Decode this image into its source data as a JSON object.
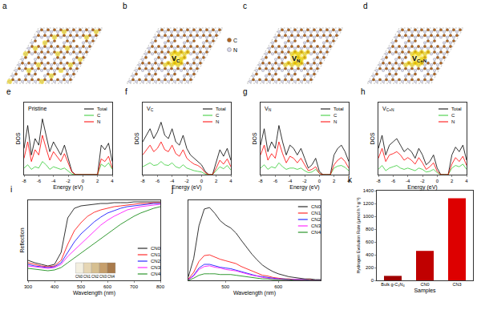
{
  "structures": {
    "atom_legend": [
      {
        "label": "C",
        "color": "#b5651d"
      },
      {
        "label": "N",
        "color": "#d8d8ee"
      }
    ],
    "panels": [
      {
        "panel": "a"
      },
      {
        "panel": "b",
        "label": "V",
        "sub": "C"
      },
      {
        "panel": "c",
        "label": "V",
        "sub": "N"
      },
      {
        "panel": "d",
        "label": "V",
        "sub": "C+N"
      }
    ]
  },
  "chart_data": [
    {
      "panel": "e",
      "type": "line",
      "title": "Pristine",
      "x": [
        -8,
        -7.5,
        -7,
        -6.5,
        -6,
        -5.5,
        -5,
        -4.5,
        -4,
        -3.5,
        -3,
        -2.5,
        -2,
        -1.5,
        -1,
        -0.5,
        0,
        0.5,
        1,
        1.5,
        2,
        2.5,
        3,
        3.5,
        4
      ],
      "series": [
        {
          "name": "Total",
          "color": "#000000",
          "values": [
            40,
            75,
            30,
            55,
            45,
            85,
            60,
            35,
            50,
            40,
            30,
            45,
            25,
            5,
            0,
            0,
            0,
            0,
            0,
            0,
            0,
            45,
            38,
            48,
            20
          ]
        },
        {
          "name": "C",
          "color": "#33cc33",
          "values": [
            10,
            15,
            8,
            12,
            10,
            20,
            15,
            8,
            12,
            10,
            8,
            10,
            5,
            1,
            0,
            0,
            0,
            0,
            0,
            0,
            0,
            16,
            12,
            18,
            8
          ]
        },
        {
          "name": "N",
          "color": "#ff0000",
          "values": [
            25,
            50,
            20,
            38,
            30,
            60,
            40,
            22,
            35,
            28,
            20,
            32,
            18,
            4,
            0,
            0,
            0,
            0,
            0,
            0,
            0,
            24,
            20,
            28,
            10
          ]
        }
      ],
      "xlim": [
        -8,
        4
      ],
      "xticks": [
        -8,
        -6,
        -4,
        -2,
        0,
        2,
        4
      ],
      "ylim": [
        0,
        110
      ],
      "x_label": "Energy (eV)",
      "y_label": "DOS",
      "tick_labels": "x",
      "legend": "upper right"
    },
    {
      "panel": "f",
      "type": "line",
      "title": "V",
      "title_sub": "C",
      "x": [
        -8,
        -7.5,
        -7,
        -6.5,
        -6,
        -5.5,
        -5,
        -4.5,
        -4,
        -3.5,
        -3,
        -2.5,
        -2,
        -1.5,
        -1,
        -0.5,
        0,
        0.5,
        1,
        1.5,
        2,
        2.5,
        3,
        3.5,
        4
      ],
      "series": [
        {
          "name": "Total",
          "color": "#000000",
          "values": [
            50,
            60,
            70,
            55,
            65,
            80,
            60,
            55,
            70,
            50,
            45,
            60,
            40,
            30,
            25,
            20,
            15,
            5,
            0,
            0,
            20,
            38,
            28,
            40,
            22
          ]
        },
        {
          "name": "C",
          "color": "#33cc33",
          "values": [
            12,
            15,
            18,
            14,
            15,
            20,
            15,
            14,
            18,
            12,
            10,
            15,
            10,
            8,
            6,
            5,
            4,
            1,
            0,
            0,
            6,
            12,
            9,
            14,
            7
          ]
        },
        {
          "name": "N",
          "color": "#ff0000",
          "values": [
            30,
            38,
            45,
            35,
            40,
            50,
            38,
            35,
            45,
            32,
            28,
            38,
            25,
            20,
            16,
            14,
            10,
            3,
            0,
            0,
            10,
            22,
            16,
            24,
            12
          ]
        }
      ],
      "xlim": [
        -8,
        4
      ],
      "xticks": [
        -8,
        -6,
        -4,
        -2,
        0,
        2,
        4
      ],
      "ylim": [
        0,
        110
      ],
      "x_label": "Energy (eV)",
      "y_label": "DOS",
      "tick_labels": "x",
      "legend": "upper right"
    },
    {
      "panel": "g",
      "type": "line",
      "title": "V",
      "title_sub": "N",
      "x": [
        -8,
        -7.5,
        -7,
        -6.5,
        -6,
        -5.5,
        -5,
        -4.5,
        -4,
        -3.5,
        -3,
        -2.5,
        -2,
        -1.5,
        -1,
        -0.5,
        0,
        0.5,
        1,
        1.5,
        2,
        2.5,
        3,
        3.5,
        4
      ],
      "series": [
        {
          "name": "Total",
          "color": "#000000",
          "values": [
            45,
            70,
            35,
            50,
            40,
            75,
            50,
            30,
            45,
            40,
            30,
            40,
            25,
            10,
            15,
            25,
            5,
            0,
            0,
            0,
            30,
            40,
            45,
            35,
            20
          ]
        },
        {
          "name": "C",
          "color": "#33cc33",
          "values": [
            10,
            15,
            8,
            12,
            10,
            18,
            12,
            8,
            10,
            10,
            8,
            10,
            6,
            3,
            4,
            8,
            2,
            0,
            0,
            0,
            10,
            13,
            14,
            11,
            6
          ]
        },
        {
          "name": "N",
          "color": "#ff0000",
          "values": [
            30,
            45,
            22,
            32,
            25,
            50,
            32,
            18,
            28,
            25,
            18,
            25,
            15,
            6,
            8,
            12,
            2,
            0,
            0,
            0,
            15,
            22,
            26,
            20,
            10
          ]
        }
      ],
      "xlim": [
        -8,
        4
      ],
      "xticks": [
        -8,
        -6,
        -4,
        -2,
        0,
        2,
        4
      ],
      "ylim": [
        0,
        110
      ],
      "x_label": "Energy (eV)",
      "y_label": "DOS",
      "tick_labels": "x",
      "legend": "upper right"
    },
    {
      "panel": "h",
      "type": "line",
      "title": "V",
      "title_sub": "C+N",
      "x": [
        -8,
        -7.5,
        -7,
        -6.5,
        -6,
        -5.5,
        -5,
        -4.5,
        -4,
        -3.5,
        -3,
        -2.5,
        -2,
        -1.5,
        -1,
        -0.5,
        0,
        0.5,
        1,
        1.5,
        2,
        2.5,
        3,
        3.5,
        4
      ],
      "series": [
        {
          "name": "Total",
          "color": "#000000",
          "values": [
            40,
            60,
            30,
            45,
            50,
            55,
            45,
            35,
            40,
            35,
            25,
            40,
            30,
            15,
            20,
            30,
            10,
            0,
            0,
            0,
            30,
            42,
            35,
            45,
            22
          ]
        },
        {
          "name": "C",
          "color": "#33cc33",
          "values": [
            8,
            14,
            6,
            10,
            12,
            14,
            10,
            8,
            10,
            8,
            6,
            10,
            8,
            4,
            5,
            8,
            3,
            0,
            0,
            0,
            10,
            14,
            12,
            16,
            8
          ]
        },
        {
          "name": "N",
          "color": "#ff0000",
          "values": [
            25,
            40,
            20,
            30,
            32,
            35,
            30,
            22,
            26,
            22,
            16,
            26,
            18,
            8,
            12,
            18,
            5,
            0,
            0,
            0,
            16,
            26,
            20,
            28,
            14
          ]
        }
      ],
      "xlim": [
        -8,
        4
      ],
      "xticks": [
        -8,
        -6,
        -4,
        -2,
        0,
        2,
        4
      ],
      "ylim": [
        0,
        110
      ],
      "x_label": "Energy (eV)",
      "y_label": "DOS",
      "tick_labels": "x",
      "legend": "upper right"
    },
    {
      "panel": "i",
      "type": "line",
      "x": [
        300,
        325,
        350,
        375,
        400,
        425,
        450,
        475,
        500,
        525,
        550,
        575,
        600,
        625,
        650,
        675,
        700,
        725,
        750,
        775,
        800
      ],
      "series": [
        {
          "name": "CN0",
          "color": "#000000",
          "values": [
            25,
            22,
            20,
            18,
            20,
            35,
            78,
            90,
            93,
            94,
            95,
            96,
            96,
            97,
            97,
            97,
            98,
            98,
            98,
            98,
            98
          ]
        },
        {
          "name": "CN1",
          "color": "#ff0000",
          "values": [
            22,
            20,
            18,
            17,
            18,
            25,
            45,
            62,
            72,
            80,
            85,
            88,
            90,
            92,
            93,
            94,
            95,
            96,
            96,
            97,
            97
          ]
        },
        {
          "name": "CN2",
          "color": "#0000ff",
          "values": [
            20,
            18,
            17,
            16,
            17,
            22,
            35,
            48,
            58,
            66,
            73,
            79,
            84,
            87,
            90,
            92,
            93,
            94,
            95,
            96,
            96
          ]
        },
        {
          "name": "CN3",
          "color": "#ff00ff",
          "values": [
            18,
            17,
            16,
            15,
            16,
            20,
            30,
            38,
            46,
            54,
            62,
            69,
            75,
            80,
            84,
            88,
            90,
            92,
            93,
            94,
            95
          ]
        },
        {
          "name": "CN4",
          "color": "#008000",
          "values": [
            15,
            14,
            13,
            12,
            13,
            16,
            22,
            28,
            34,
            40,
            46,
            52,
            58,
            64,
            70,
            75,
            80,
            84,
            87,
            90,
            92
          ]
        }
      ],
      "xlim": [
        300,
        800
      ],
      "xticks": [
        300,
        400,
        500,
        600,
        700,
        800
      ],
      "ylim": [
        0,
        100
      ],
      "x_label": "Wavelength (nm)",
      "y_label": "Reflection",
      "tick_labels": "x",
      "legend": "lower right",
      "inset_labels": [
        "CN0",
        "CN1",
        "CN2",
        "CN3",
        "CN4"
      ]
    },
    {
      "panel": "j",
      "type": "line",
      "x": [
        430,
        440,
        450,
        460,
        470,
        480,
        490,
        500,
        510,
        520,
        530,
        540,
        550,
        560,
        570,
        580,
        590,
        600,
        610,
        620,
        630,
        640,
        650,
        660,
        670,
        680
      ],
      "series": [
        {
          "name": "CN0",
          "color": "#000000",
          "values": [
            5,
            30,
            75,
            98,
            100,
            92,
            82,
            76,
            72,
            65,
            55,
            45,
            36,
            28,
            21,
            16,
            12,
            9,
            7,
            5,
            4,
            3,
            2,
            2,
            1,
            1
          ]
        },
        {
          "name": "CN1",
          "color": "#ff0000",
          "values": [
            2,
            11,
            26,
            34,
            35,
            32,
            29,
            27,
            25,
            23,
            19,
            16,
            13,
            10,
            7,
            6,
            4,
            3,
            2,
            2,
            1,
            1,
            1,
            1,
            0,
            0
          ]
        },
        {
          "name": "CN2",
          "color": "#0000ff",
          "values": [
            1,
            7,
            17,
            22,
            22,
            20,
            18,
            17,
            16,
            14,
            12,
            10,
            8,
            6,
            5,
            4,
            3,
            2,
            2,
            1,
            1,
            1,
            1,
            0,
            0,
            0
          ]
        },
        {
          "name": "CN3",
          "color": "#ff00ff",
          "values": [
            1,
            6,
            15,
            19,
            20,
            18,
            17,
            15,
            14,
            13,
            11,
            9,
            7,
            6,
            4,
            3,
            2,
            2,
            1,
            1,
            1,
            1,
            0,
            0,
            0,
            0
          ]
        },
        {
          "name": "CN4",
          "color": "#008000",
          "values": [
            0,
            3,
            7,
            9,
            9,
            9,
            8,
            8,
            8,
            7,
            6,
            5,
            4,
            3,
            2,
            2,
            1,
            1,
            1,
            1,
            0,
            0,
            0,
            0,
            0,
            0
          ]
        }
      ],
      "xlim": [
        430,
        680
      ],
      "xticks": [
        500,
        600
      ],
      "ylim": [
        0,
        110
      ],
      "x_label": "Wavelength (nm)",
      "tick_labels": "x",
      "legend": "upper right"
    },
    {
      "panel": "k",
      "type": "bar",
      "categories": [
        "Bulk g-C₃N₄",
        "CN0",
        "CN3"
      ],
      "values": [
        70,
        460,
        1280
      ],
      "colors": [
        "#a00000",
        "#c00000",
        "#dd0000"
      ],
      "ylim": [
        0,
        1400
      ],
      "yticks": [
        0,
        200,
        400,
        600,
        800,
        1000,
        1200,
        1400
      ],
      "x_label": "Samples",
      "y_label": "Hydrogen Evolution Rate (μmol h⁻¹ g⁻¹)"
    }
  ]
}
